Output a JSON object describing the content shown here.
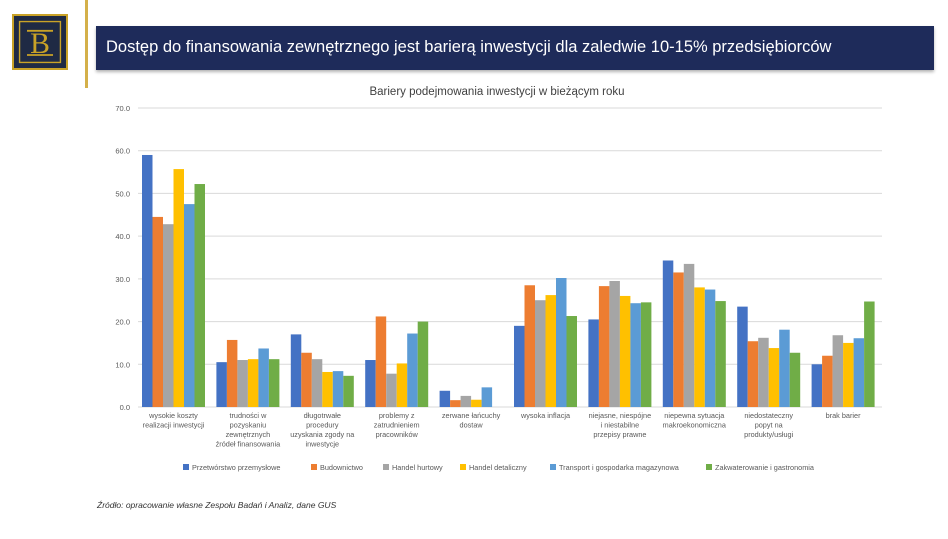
{
  "header": {
    "title": "Dostęp do finansowania zewnętrznego jest barierą inwestycji dla zaledwie 10-15% przedsiębiorców"
  },
  "chart_data": {
    "type": "bar",
    "title": "Bariery podejmowania inwestycji w bieżącym roku",
    "ylim": [
      0,
      70
    ],
    "yticks": [
      "0.0",
      "10.0",
      "20.0",
      "30.0",
      "40.0",
      "50.0",
      "60.0",
      "70.0"
    ],
    "grid": true,
    "legend_position": "bottom",
    "categories": [
      [
        "wysokie koszty",
        "realizacji inwestycji"
      ],
      [
        "trudności w",
        "pozyskaniu",
        "zewnętrznych",
        "źródeł finansowania"
      ],
      [
        "długotrwałe",
        "procedury",
        "uzyskania zgody na",
        "inwestycje"
      ],
      [
        "problemy z",
        "zatrudnieniem",
        "pracowników"
      ],
      [
        "zerwane łańcuchy",
        "dostaw"
      ],
      [
        "wysoka inflacja"
      ],
      [
        "niejasne, niespójne",
        "i niestabilne",
        "przepisy prawne"
      ],
      [
        "niepewna sytuacja",
        "makroekonomiczna"
      ],
      [
        "niedostateczny",
        "popyt na",
        "produkty/usługi"
      ],
      [
        "brak barier"
      ]
    ],
    "series": [
      {
        "name": "Przetwórstwo przemysłowe",
        "color": "#4472c4",
        "values": [
          59,
          10.5,
          17,
          11,
          3.8,
          19,
          20.5,
          34.3,
          23.5,
          10
        ]
      },
      {
        "name": "Budownictwo",
        "color": "#ed7d31",
        "values": [
          44.5,
          15.7,
          12.7,
          21.2,
          1.6,
          28.5,
          28.3,
          31.5,
          15.4,
          12
        ]
      },
      {
        "name": "Handel hurtowy",
        "color": "#a5a5a5",
        "values": [
          42.8,
          11,
          11.2,
          7.8,
          2.6,
          25,
          29.5,
          33.5,
          16.2,
          16.8
        ]
      },
      {
        "name": "Handel detaliczny",
        "color": "#ffc000",
        "values": [
          55.7,
          11.2,
          8.2,
          10.2,
          1.7,
          26.2,
          26,
          28,
          13.8,
          15
        ]
      },
      {
        "name": "Transport i gospodarka magazynowa",
        "color": "#5b9bd5",
        "values": [
          47.5,
          13.7,
          8.4,
          17.2,
          4.6,
          30.2,
          24.3,
          27.5,
          18.1,
          16.1
        ]
      },
      {
        "name": "Zakwaterowanie i gastronomia",
        "color": "#70ad47",
        "values": [
          52.2,
          11.2,
          7.3,
          20,
          0,
          21.3,
          24.5,
          24.8,
          12.7,
          24.7
        ]
      }
    ]
  },
  "source": "Źródło: opracowanie własne Zespołu Badań i Analiz, dane GUS"
}
